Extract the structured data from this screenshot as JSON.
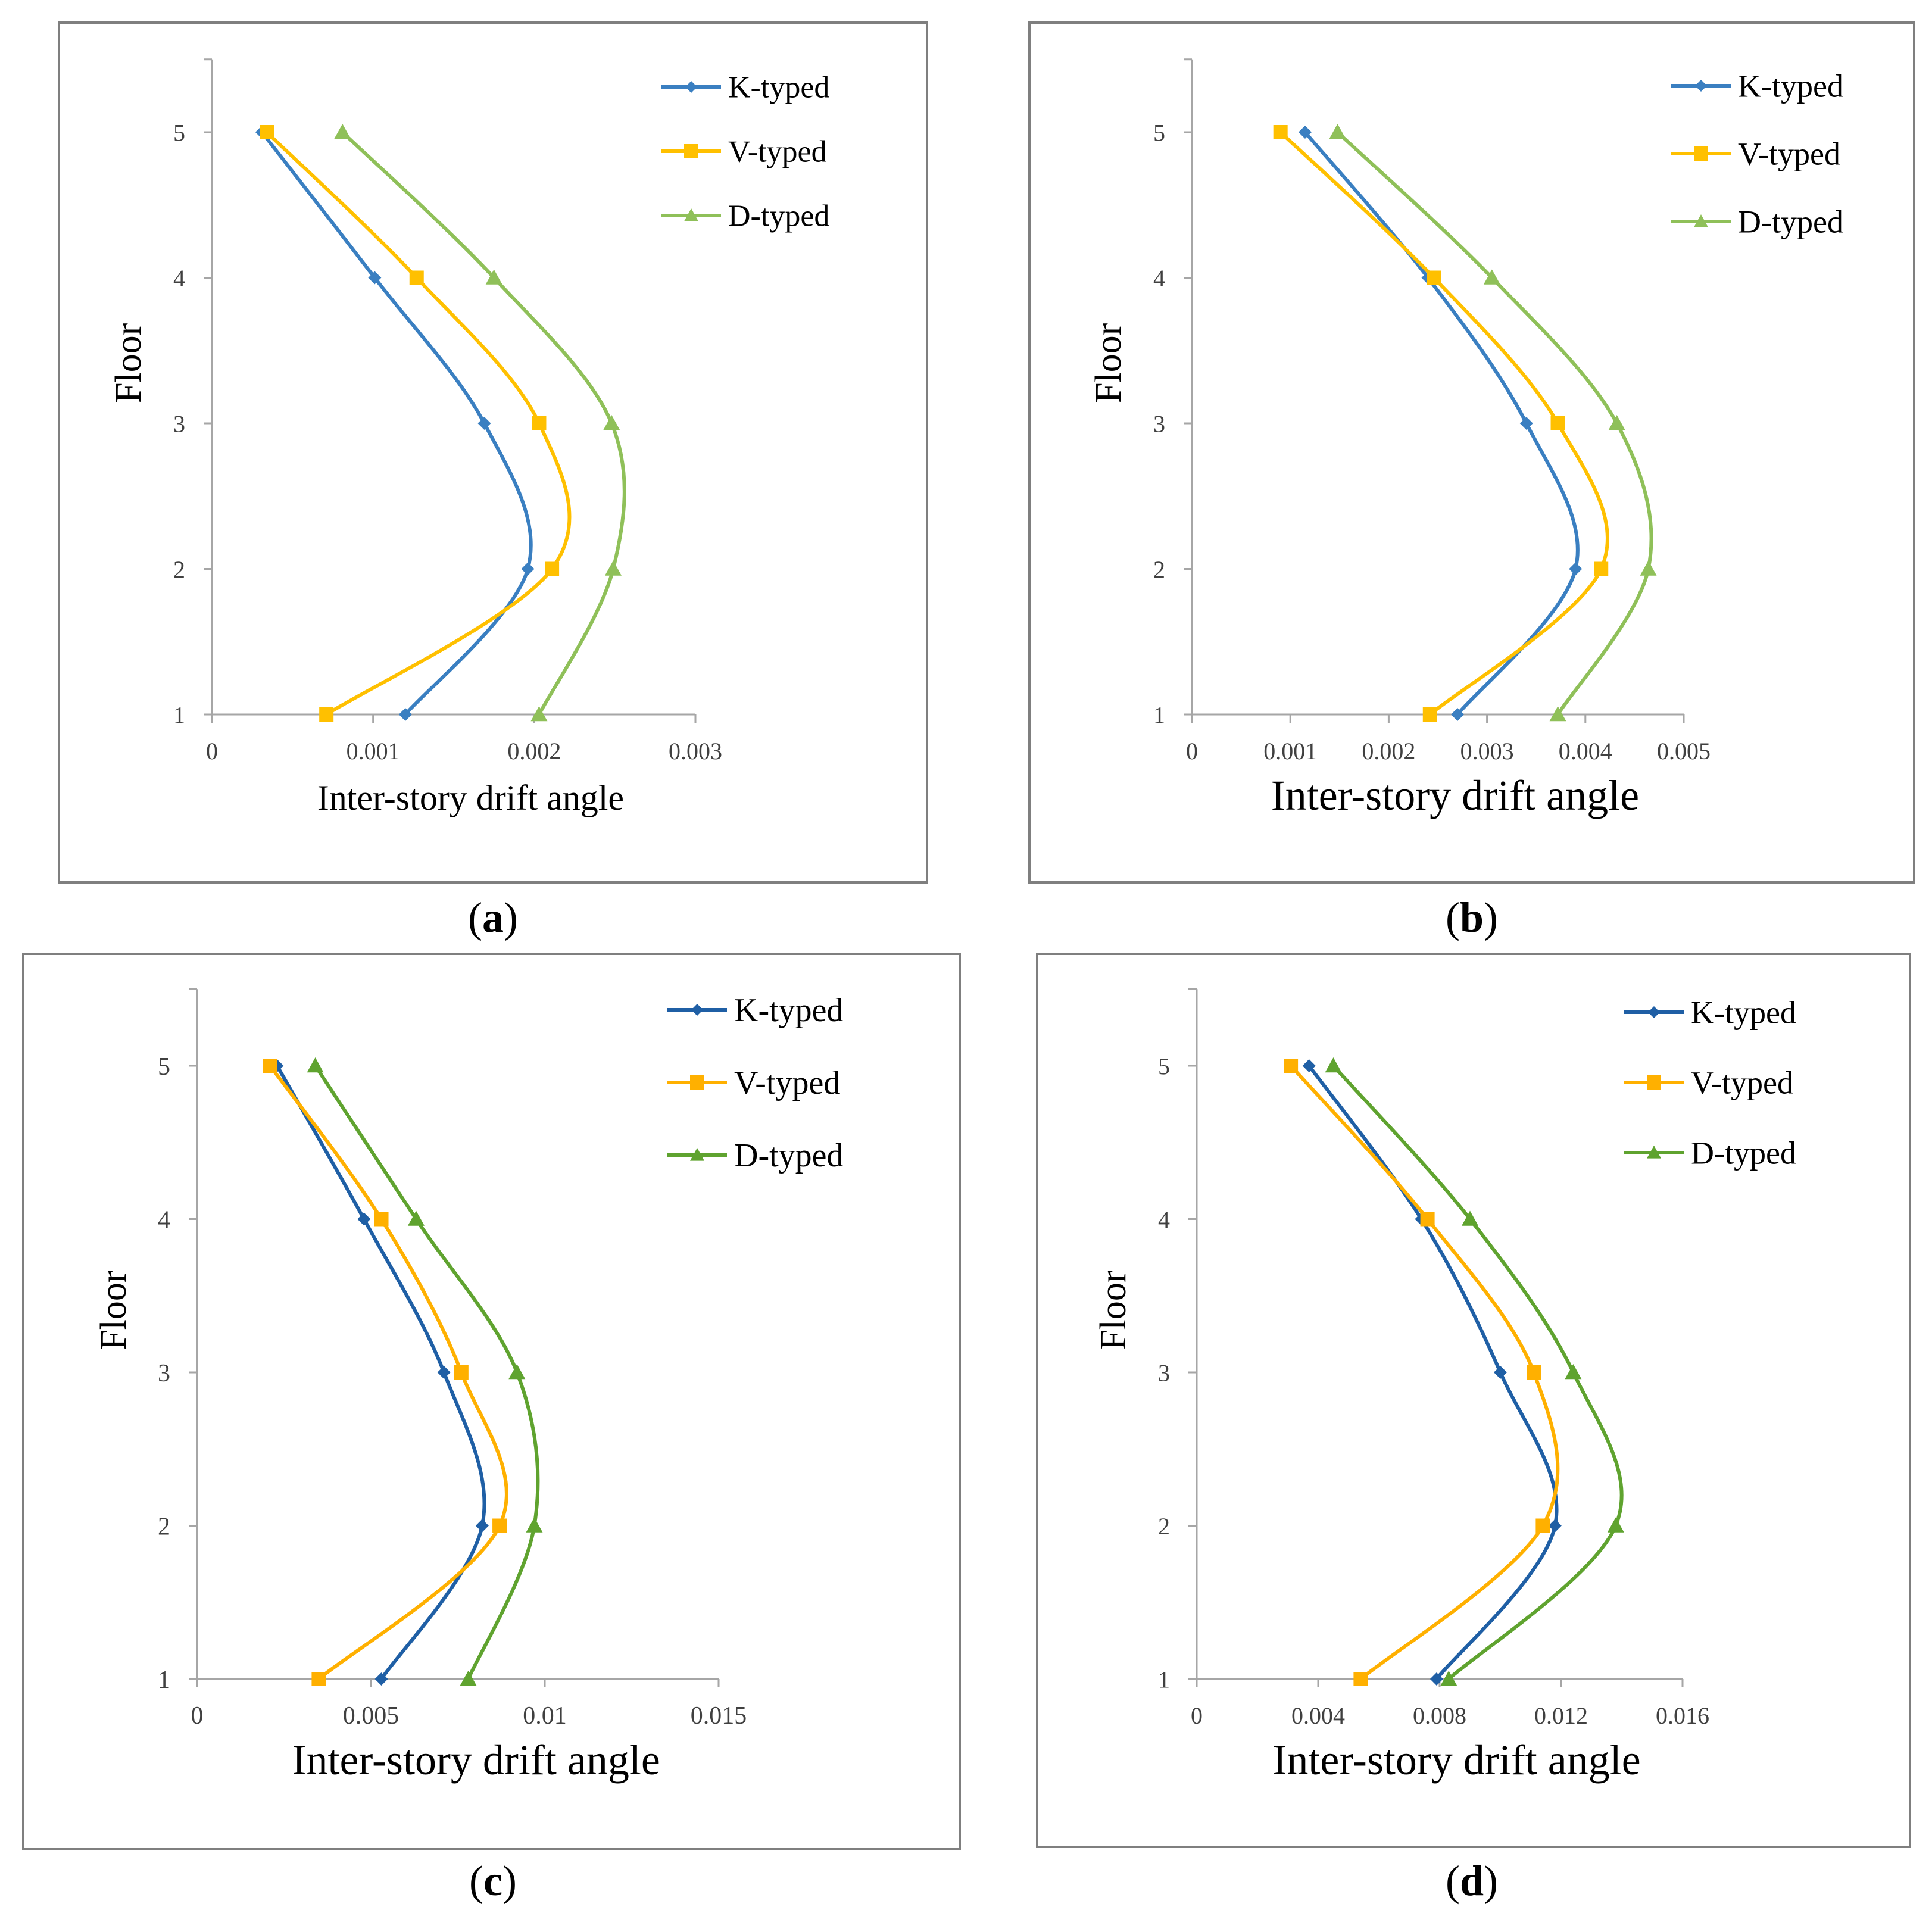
{
  "chart_data": [
    {
      "type": "line",
      "panel": "a",
      "xlabel": "Inter-story drift angle",
      "ylabel": "Floor",
      "xlim": [
        0,
        0.003
      ],
      "ylim": [
        1,
        5.5
      ],
      "xticks": [
        0,
        0.001,
        0.002,
        0.003
      ],
      "xtick_labels": [
        "0",
        "0.001",
        "0.002",
        "0.003"
      ],
      "yticks": [
        1,
        2,
        3,
        4,
        5
      ],
      "ytick_labels": [
        "1",
        "2",
        "3",
        "4",
        "5"
      ],
      "floors": [
        1,
        2,
        3,
        4,
        5
      ],
      "series": [
        {
          "name": "K-typed",
          "values": [
            0.0012,
            0.00196,
            0.00169,
            0.00101,
            0.00031
          ]
        },
        {
          "name": "V-typed",
          "values": [
            0.00071,
            0.00211,
            0.00203,
            0.00127,
            0.00034
          ]
        },
        {
          "name": "D-typed",
          "values": [
            0.00203,
            0.00249,
            0.00248,
            0.00175,
            0.00081
          ]
        }
      ]
    },
    {
      "type": "line",
      "panel": "b",
      "xlabel": "Inter-story drift angle",
      "ylabel": "Floor",
      "xlim": [
        0,
        0.005
      ],
      "ylim": [
        1,
        5.5
      ],
      "xticks": [
        0,
        0.001,
        0.002,
        0.003,
        0.004,
        0.005
      ],
      "xtick_labels": [
        "0",
        "0.001",
        "0.002",
        "0.003",
        "0.004",
        "0.005"
      ],
      "yticks": [
        1,
        2,
        3,
        4,
        5
      ],
      "ytick_labels": [
        "1",
        "2",
        "3",
        "4",
        "5"
      ],
      "floors": [
        1,
        2,
        3,
        4,
        5
      ],
      "series": [
        {
          "name": "K-typed",
          "values": [
            0.0027,
            0.0039,
            0.0034,
            0.0024,
            0.00115
          ]
        },
        {
          "name": "V-typed",
          "values": [
            0.00242,
            0.00416,
            0.00372,
            0.00246,
            0.0009
          ]
        },
        {
          "name": "D-typed",
          "values": [
            0.00372,
            0.00464,
            0.00432,
            0.00305,
            0.00148
          ]
        }
      ]
    },
    {
      "type": "line",
      "panel": "c",
      "xlabel": "Inter-story drift angle",
      "ylabel": "Floor",
      "xlim": [
        0,
        0.015
      ],
      "ylim": [
        1,
        5.5
      ],
      "xticks": [
        0,
        0.005,
        0.01,
        0.015
      ],
      "xtick_labels": [
        "0",
        "0.005",
        "0.01",
        "0.015"
      ],
      "yticks": [
        1,
        2,
        3,
        4,
        5
      ],
      "ytick_labels": [
        "1",
        "2",
        "3",
        "4",
        "5"
      ],
      "floors": [
        1,
        2,
        3,
        4,
        5
      ],
      "series": [
        {
          "name": "K-typed",
          "values": [
            0.0053,
            0.0082,
            0.0071,
            0.0048,
            0.0023
          ]
        },
        {
          "name": "V-typed",
          "values": [
            0.0035,
            0.0087,
            0.0076,
            0.0053,
            0.0021
          ]
        },
        {
          "name": "D-typed",
          "values": [
            0.0078,
            0.0097,
            0.0092,
            0.0063,
            0.0034
          ]
        }
      ]
    },
    {
      "type": "line",
      "panel": "d",
      "xlabel": "Inter-story drift angle",
      "ylabel": "Floor",
      "xlim": [
        0,
        0.016
      ],
      "ylim": [
        1,
        5.5
      ],
      "xticks": [
        0,
        0.004,
        0.008,
        0.012,
        0.016
      ],
      "xtick_labels": [
        "0",
        "0.004",
        "0.008",
        "0.012",
        "0.016"
      ],
      "yticks": [
        1,
        2,
        3,
        4,
        5
      ],
      "ytick_labels": [
        "1",
        "2",
        "3",
        "4",
        "5"
      ],
      "floors": [
        1,
        2,
        3,
        4,
        5
      ],
      "series": [
        {
          "name": "K-typed",
          "values": [
            0.0079,
            0.0118,
            0.01,
            0.0074,
            0.0037
          ]
        },
        {
          "name": "V-typed",
          "values": [
            0.0054,
            0.0114,
            0.0111,
            0.0076,
            0.0031
          ]
        },
        {
          "name": "D-typed",
          "values": [
            0.0083,
            0.0138,
            0.0124,
            0.009,
            0.0045
          ]
        }
      ]
    }
  ],
  "panel_labels": [
    "a",
    "b",
    "c",
    "d"
  ],
  "colors": {
    "a": [
      "#3a7fc1",
      "#ffc000",
      "#8fc059"
    ],
    "b": [
      "#3a7fc1",
      "#ffc000",
      "#8fc059"
    ],
    "c": [
      "#1f5fa5",
      "#ffb000",
      "#5fa32f"
    ],
    "d": [
      "#1f5fa5",
      "#ffb000",
      "#5fa32f"
    ]
  }
}
